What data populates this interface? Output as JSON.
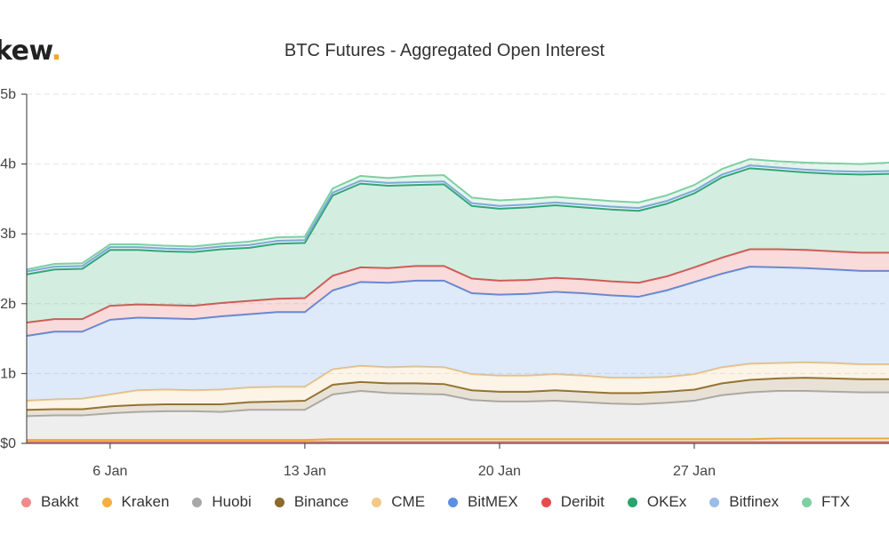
{
  "header": {
    "logo_text": "kew",
    "logo_dot": ".",
    "title": "BTC Futures - Aggregated Open Interest"
  },
  "colors": {
    "accent": "#f5a623",
    "grid": "#e6e6e6",
    "axis": "#333333"
  },
  "chart_data": {
    "type": "area",
    "stacked": true,
    "title": "BTC Futures - Aggregated Open Interest",
    "xlabel": "",
    "ylabel": "",
    "x_tick_labels": [
      "6 Jan",
      "13 Jan",
      "20 Jan",
      "27 Jan"
    ],
    "x_tick_days": [
      6,
      13,
      20,
      27
    ],
    "y_tick_labels": [
      "$0",
      "$1b",
      "$2b",
      "$3b",
      "$4b",
      "$5b"
    ],
    "y_tick_values": [
      0,
      1,
      2,
      3,
      4,
      5
    ],
    "ylim": [
      0,
      5
    ],
    "xlim": [
      3,
      34
    ],
    "x": [
      3,
      4,
      5,
      6,
      7,
      8,
      9,
      10,
      11,
      12,
      13,
      14,
      15,
      16,
      17,
      18,
      19,
      20,
      21,
      22,
      23,
      24,
      25,
      26,
      27,
      28,
      29,
      30,
      31,
      32,
      33,
      34
    ],
    "grid": true,
    "legend_position": "bottom",
    "series": [
      {
        "name": "Bakkt",
        "color": "#f28b8b",
        "line": "#e57373",
        "values": [
          0.02,
          0.02,
          0.02,
          0.02,
          0.02,
          0.02,
          0.02,
          0.02,
          0.02,
          0.02,
          0.02,
          0.02,
          0.02,
          0.02,
          0.02,
          0.02,
          0.02,
          0.02,
          0.02,
          0.02,
          0.02,
          0.02,
          0.02,
          0.02,
          0.02,
          0.02,
          0.02,
          0.02,
          0.02,
          0.02,
          0.02,
          0.02
        ]
      },
      {
        "name": "Kraken",
        "color": "#f5b041",
        "line": "#f0a830",
        "values": [
          0.03,
          0.03,
          0.03,
          0.03,
          0.03,
          0.03,
          0.03,
          0.03,
          0.03,
          0.03,
          0.03,
          0.04,
          0.04,
          0.04,
          0.04,
          0.04,
          0.04,
          0.04,
          0.04,
          0.04,
          0.04,
          0.04,
          0.04,
          0.04,
          0.04,
          0.04,
          0.04,
          0.05,
          0.05,
          0.05,
          0.05,
          0.05
        ]
      },
      {
        "name": "Huobi",
        "color": "#a8a8a8",
        "line": "#b0b0b0",
        "values": [
          0.34,
          0.35,
          0.35,
          0.38,
          0.4,
          0.41,
          0.41,
          0.4,
          0.43,
          0.43,
          0.43,
          0.64,
          0.69,
          0.66,
          0.65,
          0.64,
          0.56,
          0.54,
          0.54,
          0.55,
          0.53,
          0.51,
          0.5,
          0.52,
          0.55,
          0.63,
          0.67,
          0.68,
          0.68,
          0.67,
          0.66,
          0.66
        ]
      },
      {
        "name": "Binance",
        "color": "#8b6a2b",
        "line": "#8b6a2b",
        "values": [
          0.09,
          0.09,
          0.09,
          0.1,
          0.1,
          0.1,
          0.1,
          0.11,
          0.11,
          0.12,
          0.13,
          0.14,
          0.13,
          0.14,
          0.15,
          0.15,
          0.14,
          0.14,
          0.14,
          0.15,
          0.15,
          0.15,
          0.16,
          0.16,
          0.16,
          0.17,
          0.18,
          0.18,
          0.19,
          0.19,
          0.19,
          0.19
        ]
      },
      {
        "name": "CME",
        "color": "#f2c987",
        "line": "#f2c987",
        "values": [
          0.13,
          0.14,
          0.15,
          0.17,
          0.21,
          0.21,
          0.2,
          0.21,
          0.21,
          0.21,
          0.2,
          0.22,
          0.23,
          0.23,
          0.24,
          0.24,
          0.23,
          0.23,
          0.23,
          0.23,
          0.23,
          0.22,
          0.22,
          0.21,
          0.22,
          0.23,
          0.23,
          0.22,
          0.22,
          0.22,
          0.21,
          0.21
        ]
      },
      {
        "name": "BitMEX",
        "color": "#5c8fe0",
        "line": "#5c8fe0",
        "values": [
          0.93,
          0.97,
          0.96,
          1.07,
          1.04,
          1.02,
          1.02,
          1.05,
          1.05,
          1.07,
          1.07,
          1.13,
          1.2,
          1.21,
          1.23,
          1.24,
          1.16,
          1.16,
          1.17,
          1.18,
          1.18,
          1.18,
          1.16,
          1.24,
          1.32,
          1.34,
          1.39,
          1.37,
          1.35,
          1.34,
          1.34,
          1.34
        ]
      },
      {
        "name": "Deribit",
        "color": "#e84c4c",
        "line": "#e05555",
        "values": [
          0.19,
          0.18,
          0.18,
          0.2,
          0.19,
          0.19,
          0.19,
          0.19,
          0.19,
          0.19,
          0.2,
          0.21,
          0.21,
          0.21,
          0.21,
          0.21,
          0.21,
          0.2,
          0.2,
          0.2,
          0.2,
          0.2,
          0.2,
          0.2,
          0.21,
          0.23,
          0.25,
          0.26,
          0.26,
          0.26,
          0.26,
          0.26
        ]
      },
      {
        "name": "OKEx",
        "color": "#27a56b",
        "line": "#27a56b",
        "values": [
          0.69,
          0.71,
          0.72,
          0.8,
          0.78,
          0.77,
          0.77,
          0.77,
          0.76,
          0.79,
          0.79,
          1.15,
          1.2,
          1.18,
          1.16,
          1.17,
          1.04,
          1.03,
          1.04,
          1.04,
          1.03,
          1.03,
          1.03,
          1.04,
          1.06,
          1.15,
          1.16,
          1.13,
          1.11,
          1.11,
          1.12,
          1.13
        ]
      },
      {
        "name": "Bitfinex",
        "color": "#9bbbe8",
        "line": "#7fa6dd",
        "values": [
          0.04,
          0.04,
          0.04,
          0.04,
          0.04,
          0.04,
          0.04,
          0.04,
          0.04,
          0.04,
          0.04,
          0.04,
          0.04,
          0.04,
          0.04,
          0.04,
          0.04,
          0.04,
          0.04,
          0.04,
          0.04,
          0.04,
          0.04,
          0.04,
          0.04,
          0.04,
          0.04,
          0.04,
          0.04,
          0.04,
          0.04,
          0.04
        ]
      },
      {
        "name": "FTX",
        "color": "#7fcfa3",
        "line": "#7fcfa3",
        "values": [
          0.03,
          0.04,
          0.04,
          0.04,
          0.04,
          0.04,
          0.04,
          0.04,
          0.05,
          0.05,
          0.05,
          0.06,
          0.07,
          0.07,
          0.09,
          0.09,
          0.08,
          0.08,
          0.08,
          0.08,
          0.08,
          0.08,
          0.08,
          0.08,
          0.08,
          0.08,
          0.09,
          0.09,
          0.1,
          0.11,
          0.11,
          0.12
        ]
      }
    ]
  }
}
